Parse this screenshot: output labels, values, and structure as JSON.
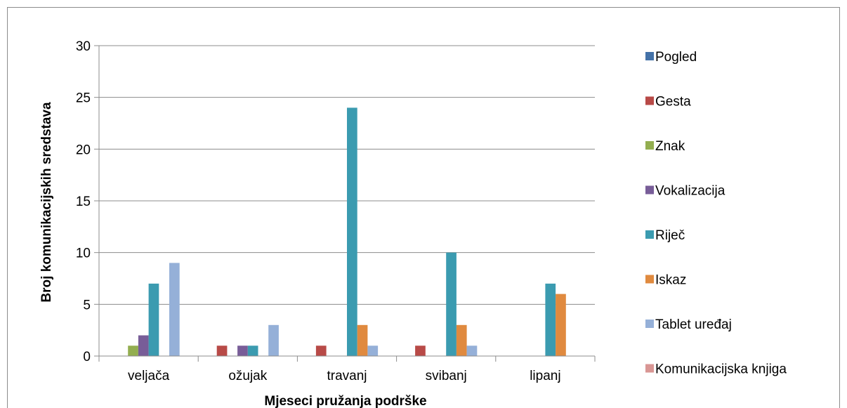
{
  "chart_data": {
    "type": "bar",
    "title": "",
    "xlabel": "Mjeseci pružanja podrške",
    "ylabel": "Broj komunikacijskih sredstava",
    "ylim": [
      0,
      30
    ],
    "yticks": [
      0,
      5,
      10,
      15,
      20,
      25,
      30
    ],
    "grid": true,
    "legend_position": "right",
    "categories": [
      "veljača",
      "ožujak",
      "travanj",
      "svibanj",
      "lipanj"
    ],
    "series": [
      {
        "name": "Pogled",
        "color": "#4472a8",
        "values": [
          0,
          0,
          0,
          0,
          0
        ]
      },
      {
        "name": "Gesta",
        "color": "#b84a47",
        "values": [
          0,
          1,
          1,
          1,
          0
        ]
      },
      {
        "name": "Znak",
        "color": "#93ae50",
        "values": [
          1,
          0,
          0,
          0,
          0
        ]
      },
      {
        "name": "Vokalizacija",
        "color": "#785d98",
        "values": [
          2,
          1,
          0,
          0,
          0
        ]
      },
      {
        "name": "Riječ",
        "color": "#3b9bb0",
        "values": [
          7,
          1,
          24,
          10,
          7
        ]
      },
      {
        "name": "Iskaz",
        "color": "#e08a3f",
        "values": [
          0,
          0,
          3,
          3,
          6
        ]
      },
      {
        "name": "Tablet uređaj",
        "color": "#95b0d8",
        "values": [
          9,
          3,
          1,
          1,
          0
        ]
      },
      {
        "name": "Komunikacijska knjiga",
        "color": "#d99694",
        "values": [
          0,
          0,
          0,
          0,
          0
        ]
      }
    ]
  }
}
